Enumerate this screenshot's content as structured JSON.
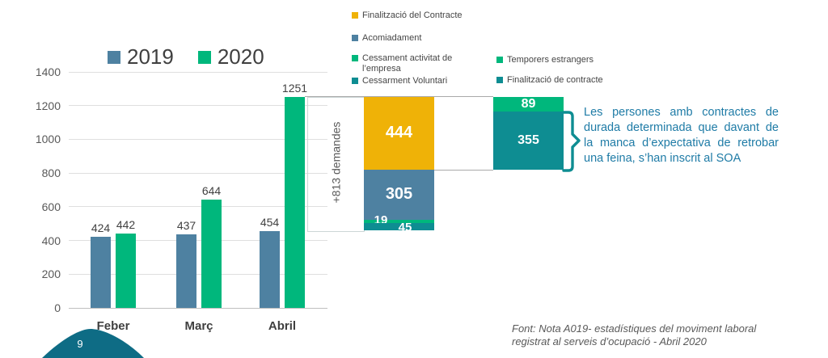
{
  "slide": {
    "callout_text": "Les persones amb contractes de durada determinada que davant de la manca d’expectativa de retrobar una feina, s’han inscrit al SOA",
    "source_note_line1": "Font: Nota A019- estadístiques del moviment laboral",
    "source_note_line2": "registrat al serveis d’ocupació - Abril 2020",
    "page_number": "9"
  },
  "colors": {
    "series_2019": "#4e81a1",
    "series_2020": "#00b77c",
    "yellow": "#efb207",
    "teal": "#0e8d92",
    "callout_text": "#1e7ba6",
    "wave": "#0e6c85",
    "connector": "#a9a9a9"
  },
  "chart_data": {
    "type": "bar",
    "title": "",
    "categories": [
      "Feber",
      "Març",
      "Abril"
    ],
    "series": [
      {
        "name": "2019",
        "color": "#4e81a1",
        "values": [
          424,
          437,
          454
        ]
      },
      {
        "name": "2020",
        "color": "#00b77c",
        "values": [
          442,
          644,
          1251
        ]
      }
    ],
    "ylim": [
      0,
      1400
    ],
    "ytick_step": 200,
    "grid": true,
    "legend_position": "top-left",
    "delta_annotation": "+813 demandes",
    "breakdown_stack": {
      "segments_top_to_bottom": [
        {
          "label": "Finalització del Contracte",
          "value": 444,
          "color": "#efb207"
        },
        {
          "label": "Acomiadament",
          "value": 305,
          "color": "#4e81a1"
        },
        {
          "label": "Cessament activitat de l’empresa",
          "value": 19,
          "color": "#00b77c"
        },
        {
          "label": "Cessarment Voluntari",
          "value": 45,
          "color": "#0e8d92"
        }
      ]
    },
    "sub_stack": {
      "segments_top_to_bottom": [
        {
          "label": "Temporers estrangers",
          "value": 89,
          "color": "#00b77c"
        },
        {
          "label": "Finalització de contracte",
          "value": 355,
          "color": "#0e8d92"
        }
      ]
    }
  }
}
